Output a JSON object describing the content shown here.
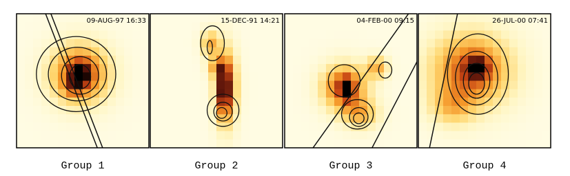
{
  "panels": [
    {
      "timestamp": "09-AUG-97 16:33",
      "label": "Group 1"
    },
    {
      "timestamp": "15-DEC-91 14:21",
      "label": "Group 2"
    },
    {
      "timestamp": "04-FEB-00 09:15",
      "label": "Group 3"
    },
    {
      "timestamp": "26-JUL-00 07:41",
      "label": "Group 4"
    }
  ]
}
